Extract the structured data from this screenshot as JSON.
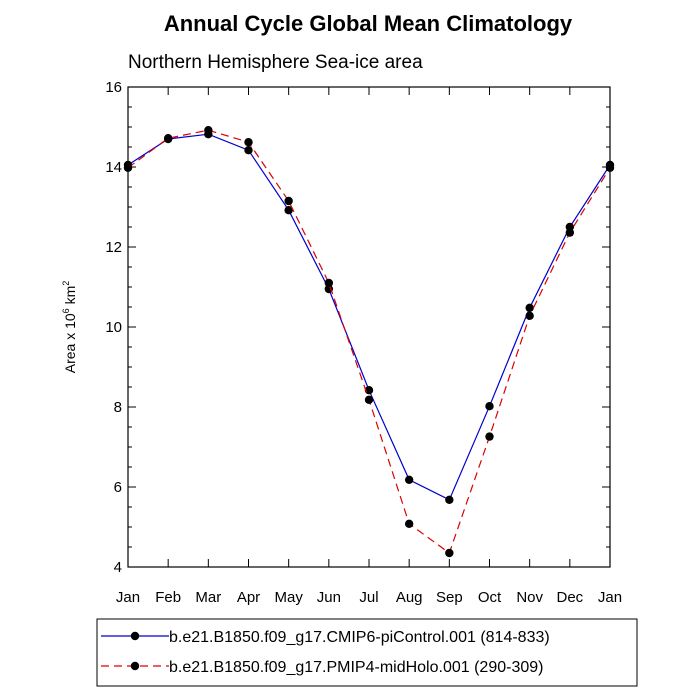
{
  "chart_data": {
    "type": "line",
    "title": "Annual Cycle Global Mean Climatology",
    "subtitle": "Northern Hemisphere Sea-ice area",
    "ylabel": {
      "prefix": "Area x 10",
      "exp1": "6",
      "mid": " km",
      "exp2": "2"
    },
    "xlabel": "",
    "categories": [
      "Jan",
      "Feb",
      "Mar",
      "Apr",
      "May",
      "Jun",
      "Jul",
      "Aug",
      "Sep",
      "Oct",
      "Nov",
      "Dec",
      "Jan"
    ],
    "ylim": [
      4,
      16
    ],
    "yticks": [
      4,
      6,
      8,
      10,
      12,
      14,
      16
    ],
    "series": [
      {
        "name": "b.e21.B1850.f09_g17.CMIP6-piControl.001 (814-833)",
        "color": "#0000cc",
        "dash": "solid",
        "values": [
          14.05,
          14.7,
          14.82,
          14.42,
          12.92,
          10.95,
          8.42,
          6.18,
          5.68,
          8.02,
          10.48,
          12.5,
          14.05
        ]
      },
      {
        "name": "b.e21.B1850.f09_g17.PMIP4-midHolo.001 (290-309)",
        "color": "#dd0000",
        "dash": "dashed",
        "values": [
          13.98,
          14.72,
          14.92,
          14.62,
          13.15,
          11.1,
          8.18,
          5.08,
          4.35,
          7.26,
          10.28,
          12.36,
          13.98
        ]
      }
    ],
    "grid": false,
    "legend_position": "bottom"
  }
}
